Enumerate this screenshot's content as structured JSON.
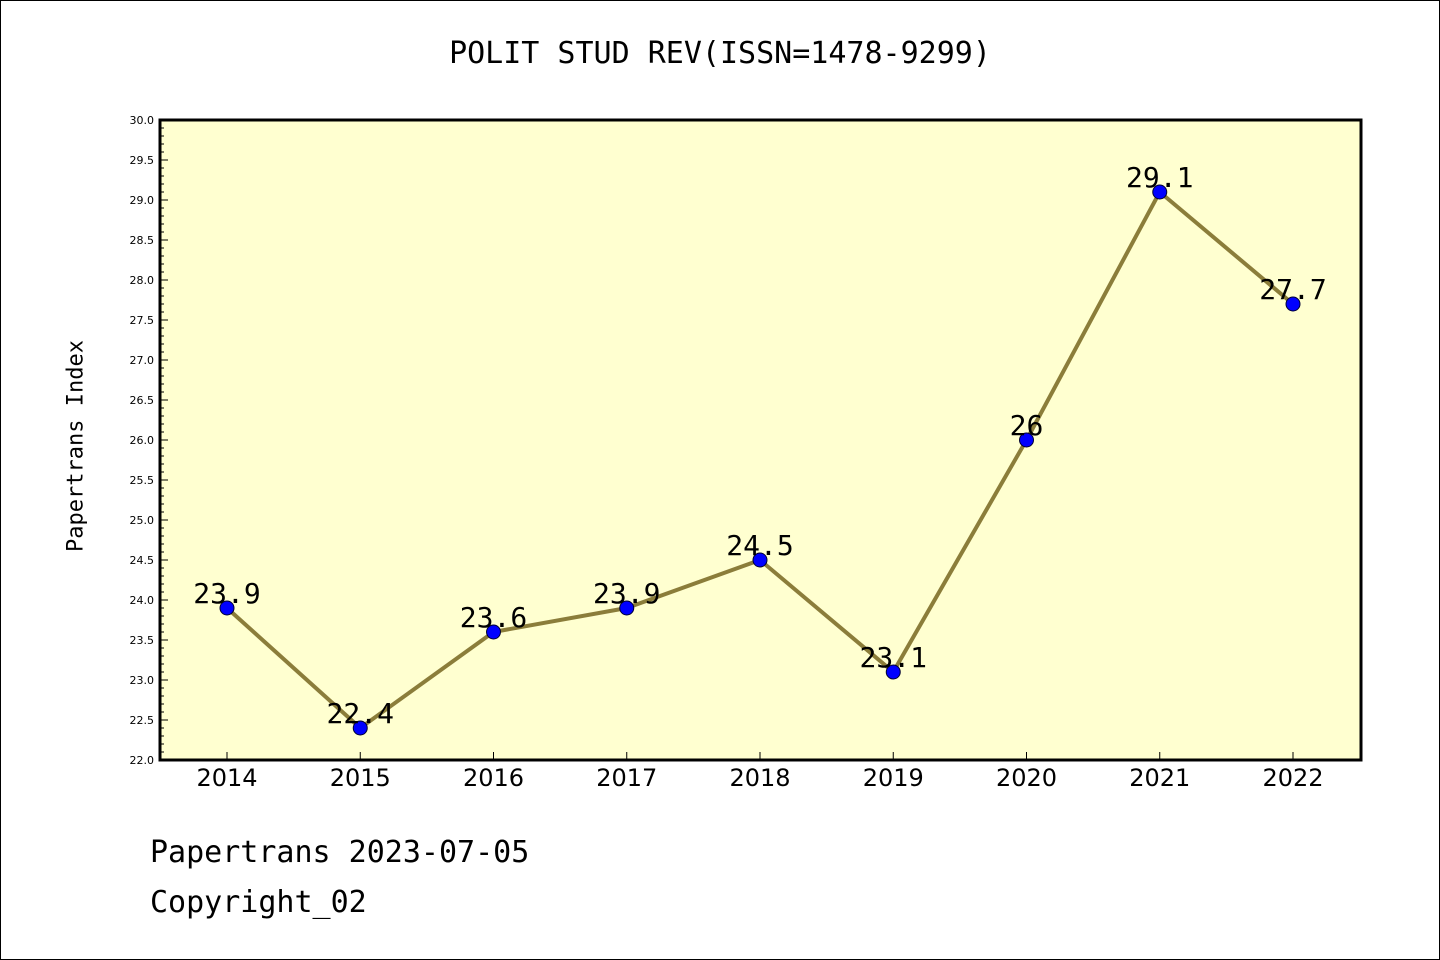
{
  "title": "POLIT STUD REV(ISSN=1478-9299)",
  "footer": {
    "line1": "Papertrans 2023-07-05",
    "line2": "Copyright_02"
  },
  "colors": {
    "plot_background": "#ffffd0",
    "line": "#8b7d3a",
    "marker": "#0000ff",
    "marker_edge": "#000033"
  },
  "chart_data": {
    "type": "line",
    "title": "POLIT STUD REV(ISSN=1478-9299)",
    "xlabel": "",
    "ylabel": "Papertrans Index",
    "categories": [
      "2014",
      "2015",
      "2016",
      "2017",
      "2018",
      "2019",
      "2020",
      "2021",
      "2022"
    ],
    "series": [
      {
        "values": [
          23.9,
          22.4,
          23.6,
          23.9,
          24.5,
          23.1,
          26,
          29.1,
          27.7
        ],
        "labels": [
          "23.9",
          "22.4",
          "23.6",
          "23.9",
          "24.5",
          "23.1",
          "26",
          "29.1",
          "27.7"
        ]
      }
    ],
    "ylim": [
      22.0,
      30.0
    ],
    "yticks": [
      "22.0",
      "22.5",
      "23.0",
      "23.5",
      "24.0",
      "24.5",
      "25.0",
      "25.5",
      "26.0",
      "26.5",
      "27.0",
      "27.5",
      "28.0",
      "28.5",
      "29.0",
      "29.5",
      "30.0"
    ],
    "grid": false,
    "legend": "none"
  }
}
